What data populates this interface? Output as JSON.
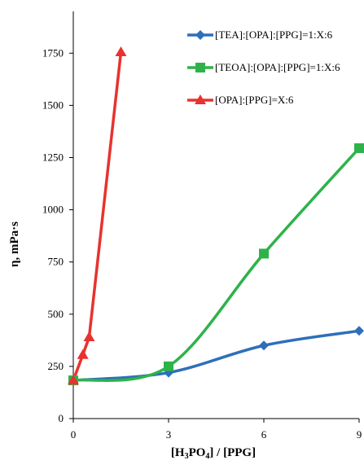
{
  "chart_data": {
    "type": "line",
    "title": "",
    "xlabel_parts": [
      "[H",
      "3",
      "PO",
      "4",
      "] / [PPG]"
    ],
    "ylabel": "η, mPa·s",
    "xlim": [
      0,
      9
    ],
    "ylim": [
      0,
      1950
    ],
    "xticks": [
      0,
      3,
      6,
      9
    ],
    "yticks": [
      0,
      250,
      500,
      750,
      1000,
      1250,
      1500,
      1750
    ],
    "grid": false,
    "legend_position": "top-right",
    "series": [
      {
        "name": "[TEA]:[OPA]:[PPG]=1:X:6",
        "color": "#2e6fba",
        "marker": "diamond",
        "x": [
          0,
          3,
          6,
          9
        ],
        "y": [
          183,
          220,
          350,
          420
        ]
      },
      {
        "name": "[TEOA]:[OPA]:[PPG]=1:X:6",
        "color": "#2db34a",
        "marker": "square",
        "x": [
          0,
          3,
          6,
          9
        ],
        "y": [
          183,
          250,
          790,
          1295
        ]
      },
      {
        "name": "[OPA]:[PPG]=X:6",
        "color": "#e8322e",
        "marker": "triangle",
        "x": [
          0,
          0.3,
          0.5,
          1.5
        ],
        "y": [
          183,
          305,
          390,
          1755
        ]
      }
    ]
  }
}
